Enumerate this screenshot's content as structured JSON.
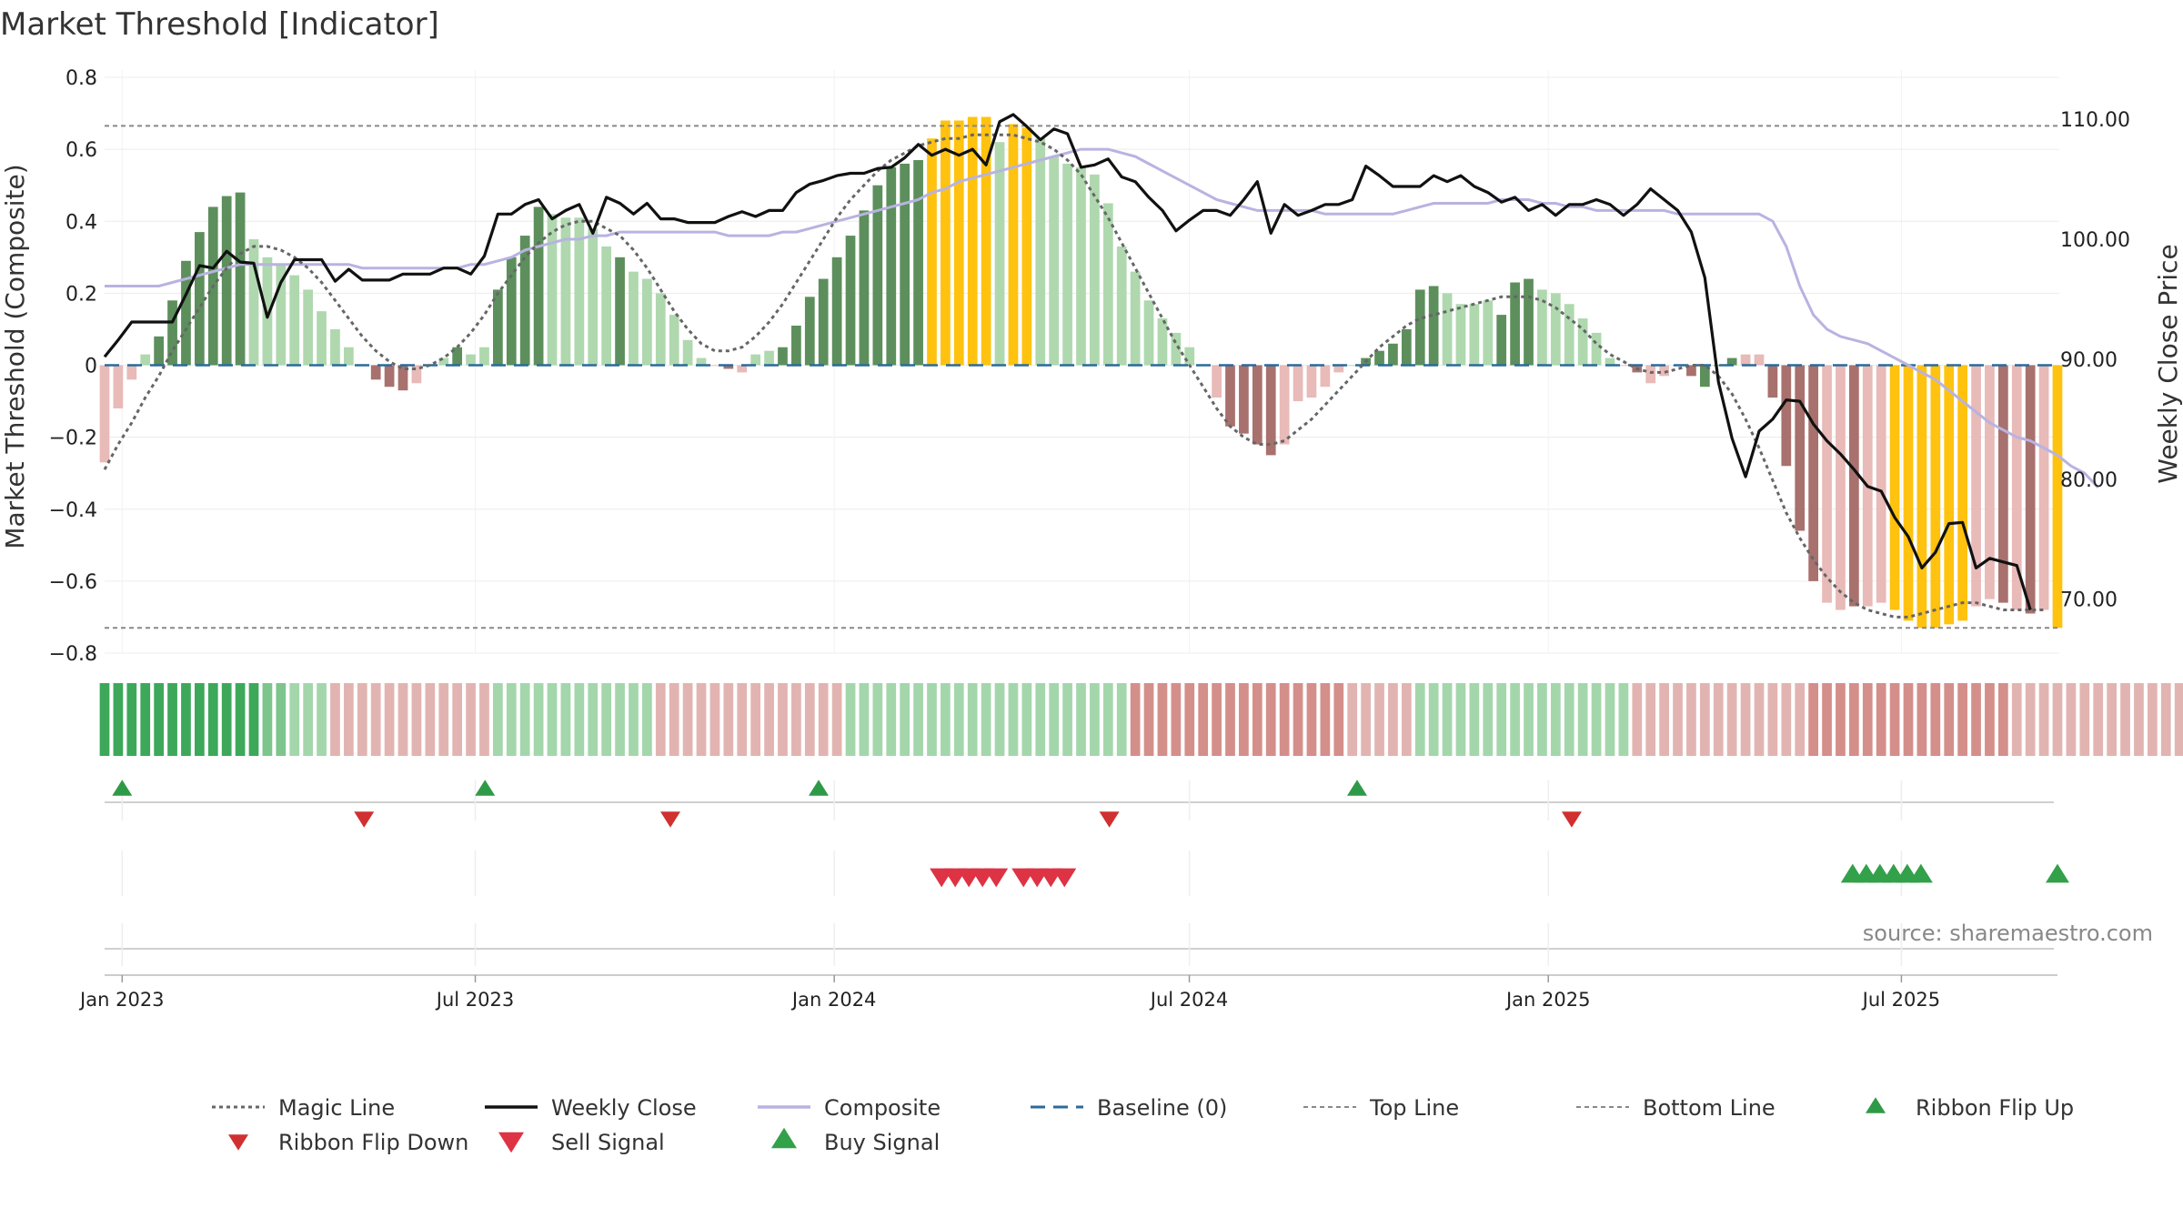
{
  "chart_data": {
    "type": "bar",
    "title": "Market Threshold [Indicator]",
    "ylabel_left": "Market Threshold (Composite)",
    "ylabel_right": "Weekly Close Price",
    "source": "source: sharemaestro.com",
    "ylim_left": [
      -0.8,
      0.8
    ],
    "ylim_right": [
      65.5,
      113.5
    ],
    "yticks_left": [
      {
        "v": 0.8,
        "label": "0.8"
      },
      {
        "v": 0.6,
        "label": "0.6"
      },
      {
        "v": 0.4,
        "label": "0.4"
      },
      {
        "v": 0.2,
        "label": "0.2"
      },
      {
        "v": 0,
        "label": "0"
      },
      {
        "v": -0.2,
        "label": "−0.2"
      },
      {
        "v": -0.4,
        "label": "−0.4"
      },
      {
        "v": -0.6,
        "label": "−0.6"
      },
      {
        "v": -0.8,
        "label": "−0.8"
      }
    ],
    "yticks_right": [
      {
        "v": 110,
        "label": "110.00"
      },
      {
        "v": 100,
        "label": "100.00"
      },
      {
        "v": 90,
        "label": "90.00"
      },
      {
        "v": 80,
        "label": "80.00"
      },
      {
        "v": 70,
        "label": "70.00"
      }
    ],
    "x_start": "2022-12-23",
    "x_end": "2025-09-19",
    "x_ticks": [
      {
        "date": "2023-01-01",
        "label": "Jan 2023"
      },
      {
        "date": "2023-07-01",
        "label": "Jul 2023"
      },
      {
        "date": "2024-01-01",
        "label": "Jan 2024"
      },
      {
        "date": "2024-07-01",
        "label": "Jul 2024"
      },
      {
        "date": "2025-01-01",
        "label": "Jan 2025"
      },
      {
        "date": "2025-07-01",
        "label": "Jul 2025"
      }
    ],
    "top_line": 0.665,
    "bottom_line": -0.73,
    "baseline": 0,
    "grid": true,
    "composite": [
      -0.27,
      -0.12,
      -0.04,
      0.03,
      0.08,
      0.18,
      0.29,
      0.37,
      0.44,
      0.47,
      0.48,
      0.35,
      0.3,
      0.28,
      0.25,
      0.21,
      0.15,
      0.1,
      0.05,
      0.0,
      -0.04,
      -0.06,
      -0.07,
      -0.05,
      0.0,
      0.02,
      0.05,
      0.03,
      0.05,
      0.21,
      0.3,
      0.36,
      0.44,
      0.42,
      0.41,
      0.41,
      0.38,
      0.33,
      0.3,
      0.26,
      0.24,
      0.2,
      0.14,
      0.07,
      0.02,
      0.0,
      -0.01,
      -0.02,
      0.03,
      0.04,
      0.05,
      0.11,
      0.19,
      0.24,
      0.3,
      0.36,
      0.43,
      0.5,
      0.55,
      0.56,
      0.57,
      0.63,
      0.68,
      0.68,
      0.69,
      0.69,
      0.62,
      0.67,
      0.66,
      0.63,
      0.58,
      0.56,
      0.55,
      0.53,
      0.45,
      0.33,
      0.26,
      0.18,
      0.13,
      0.09,
      0.05,
      0.0,
      -0.09,
      -0.17,
      -0.19,
      -0.22,
      -0.25,
      -0.22,
      -0.1,
      -0.09,
      -0.06,
      -0.02,
      0.0,
      0.02,
      0.04,
      0.06,
      0.1,
      0.21,
      0.22,
      0.2,
      0.17,
      0.17,
      0.18,
      0.14,
      0.23,
      0.24,
      0.21,
      0.2,
      0.17,
      0.13,
      0.09,
      0.02,
      0.0,
      -0.02,
      -0.05,
      -0.03,
      0.0,
      -0.03,
      -0.06,
      0.0,
      0.02,
      0.03,
      0.03,
      -0.09,
      -0.28,
      -0.46,
      -0.6,
      -0.66,
      -0.68,
      -0.67,
      -0.67,
      -0.66,
      -0.68,
      -0.71,
      -0.73,
      -0.73,
      -0.72,
      -0.71,
      -0.67,
      -0.65,
      -0.66,
      -0.68,
      -0.69,
      -0.68,
      -0.73
    ],
    "bar_class": [
      "lr",
      "lr",
      "lr",
      "lg",
      "dg",
      "dg",
      "dg",
      "dg",
      "dg",
      "dg",
      "dg",
      "lg",
      "lg",
      "lg",
      "lg",
      "lg",
      "lg",
      "lg",
      "lg",
      "lr",
      "dr",
      "dr",
      "dr",
      "lr",
      "lg",
      "lg",
      "dg",
      "lg",
      "lg",
      "dg",
      "dg",
      "dg",
      "dg",
      "lg",
      "lg",
      "lg",
      "lg",
      "lg",
      "dg",
      "lg",
      "lg",
      "lg",
      "lg",
      "lg",
      "lg",
      "lr",
      "dr",
      "lr",
      "lg",
      "lg",
      "dg",
      "dg",
      "dg",
      "dg",
      "dg",
      "dg",
      "dg",
      "dg",
      "dg",
      "dg",
      "dg",
      "y",
      "y",
      "y",
      "y",
      "y",
      "lg",
      "y",
      "y",
      "lg",
      "lg",
      "lg",
      "lg",
      "lg",
      "lg",
      "lg",
      "lg",
      "lg",
      "lg",
      "lg",
      "lg",
      "lr",
      "lr",
      "dr",
      "dr",
      "dr",
      "dr",
      "lr",
      "lr",
      "lr",
      "lr",
      "lr",
      "lg",
      "dg",
      "dg",
      "dg",
      "dg",
      "dg",
      "dg",
      "lg",
      "lg",
      "lg",
      "lg",
      "dg",
      "dg",
      "dg",
      "lg",
      "lg",
      "lg",
      "lg",
      "lg",
      "lg",
      "lr",
      "dr",
      "lr",
      "lr",
      "dr",
      "dr",
      "dg",
      "dg",
      "dg",
      "lr",
      "lr",
      "dr",
      "dr",
      "dr",
      "dr",
      "lr",
      "lr",
      "dr",
      "lr",
      "lr",
      "y",
      "y",
      "y",
      "y",
      "y",
      "y",
      "lr",
      "lr",
      "dr",
      "lr",
      "dr",
      "lr",
      "y"
    ],
    "weekly_close": [
      90.2,
      91.6,
      93.1,
      93.1,
      93.1,
      93.1,
      95.4,
      97.8,
      97.6,
      99.0,
      98.1,
      98.0,
      93.5,
      96.4,
      98.3,
      98.3,
      98.3,
      96.5,
      97.5,
      96.6,
      96.6,
      96.6,
      97.1,
      97.1,
      97.1,
      97.6,
      97.6,
      97.1,
      98.6,
      102.1,
      102.1,
      102.9,
      103.3,
      101.7,
      102.4,
      102.9,
      100.5,
      103.5,
      103.0,
      102.1,
      103.0,
      101.7,
      101.7,
      101.4,
      101.4,
      101.4,
      101.9,
      102.3,
      101.9,
      102.4,
      102.4,
      103.9,
      104.6,
      104.9,
      105.3,
      105.5,
      105.5,
      105.9,
      106.0,
      106.8,
      107.9,
      107.0,
      107.5,
      107.0,
      107.5,
      106.2,
      109.8,
      110.4,
      109.4,
      108.3,
      109.2,
      108.8,
      106.0,
      106.2,
      106.7,
      105.2,
      104.8,
      103.5,
      102.4,
      100.7,
      101.6,
      102.4,
      102.4,
      102.0,
      103.3,
      104.8,
      100.5,
      102.9,
      102.0,
      102.4,
      102.9,
      102.9,
      103.3,
      106.1,
      105.3,
      104.4,
      104.4,
      104.4,
      105.3,
      104.8,
      105.3,
      104.4,
      103.9,
      103.1,
      103.5,
      102.4,
      102.9,
      102.0,
      102.9,
      102.9,
      103.3,
      102.9,
      102.0,
      102.9,
      104.2,
      103.3,
      102.4,
      100.6,
      96.8,
      88.1,
      83.4,
      80.2,
      84.0,
      85.0,
      86.6,
      86.5,
      84.6,
      83.2,
      82.1,
      80.8,
      79.4,
      79.0,
      76.8,
      75.2,
      72.6,
      73.9,
      76.3,
      76.4,
      72.6,
      73.4,
      73.1,
      72.8,
      69.1
    ],
    "magic_line": [
      -0.29,
      -0.22,
      -0.16,
      -0.09,
      -0.03,
      0.04,
      0.1,
      0.16,
      0.22,
      0.27,
      0.31,
      0.33,
      0.33,
      0.32,
      0.3,
      0.27,
      0.23,
      0.18,
      0.13,
      0.08,
      0.04,
      0.01,
      -0.01,
      -0.01,
      0.0,
      0.02,
      0.05,
      0.09,
      0.14,
      0.2,
      0.25,
      0.3,
      0.34,
      0.37,
      0.39,
      0.4,
      0.4,
      0.38,
      0.36,
      0.32,
      0.27,
      0.21,
      0.15,
      0.1,
      0.06,
      0.04,
      0.04,
      0.05,
      0.08,
      0.12,
      0.17,
      0.23,
      0.29,
      0.35,
      0.41,
      0.46,
      0.5,
      0.54,
      0.57,
      0.59,
      0.61,
      0.62,
      0.63,
      0.63,
      0.64,
      0.64,
      0.64,
      0.64,
      0.63,
      0.62,
      0.6,
      0.57,
      0.53,
      0.47,
      0.41,
      0.34,
      0.27,
      0.2,
      0.13,
      0.06,
      0.0,
      -0.06,
      -0.12,
      -0.17,
      -0.2,
      -0.22,
      -0.22,
      -0.21,
      -0.18,
      -0.15,
      -0.11,
      -0.07,
      -0.03,
      0.01,
      0.05,
      0.08,
      0.11,
      0.13,
      0.14,
      0.15,
      0.16,
      0.17,
      0.18,
      0.19,
      0.19,
      0.19,
      0.18,
      0.16,
      0.13,
      0.1,
      0.06,
      0.03,
      0.01,
      -0.01,
      -0.02,
      -0.02,
      -0.01,
      0.0,
      0.0,
      -0.03,
      -0.08,
      -0.15,
      -0.23,
      -0.32,
      -0.41,
      -0.48,
      -0.54,
      -0.59,
      -0.63,
      -0.66,
      -0.68,
      -0.69,
      -0.7,
      -0.7,
      -0.69,
      -0.68,
      -0.67,
      -0.66,
      -0.66,
      -0.67,
      -0.68,
      -0.68,
      -0.68,
      -0.68
    ],
    "composite_line": [
      0.22,
      0.22,
      0.22,
      0.22,
      0.22,
      0.23,
      0.24,
      0.25,
      0.26,
      0.27,
      0.28,
      0.28,
      0.28,
      0.28,
      0.28,
      0.28,
      0.28,
      0.28,
      0.28,
      0.27,
      0.27,
      0.27,
      0.27,
      0.27,
      0.27,
      0.27,
      0.27,
      0.28,
      0.28,
      0.29,
      0.3,
      0.32,
      0.33,
      0.34,
      0.35,
      0.35,
      0.36,
      0.36,
      0.37,
      0.37,
      0.37,
      0.37,
      0.37,
      0.37,
      0.37,
      0.37,
      0.36,
      0.36,
      0.36,
      0.36,
      0.37,
      0.37,
      0.38,
      0.39,
      0.4,
      0.41,
      0.42,
      0.43,
      0.44,
      0.45,
      0.46,
      0.48,
      0.49,
      0.51,
      0.52,
      0.53,
      0.54,
      0.55,
      0.56,
      0.57,
      0.58,
      0.59,
      0.6,
      0.6,
      0.6,
      0.59,
      0.58,
      0.56,
      0.54,
      0.52,
      0.5,
      0.48,
      0.46,
      0.45,
      0.44,
      0.43,
      0.43,
      0.43,
      0.43,
      0.43,
      0.42,
      0.42,
      0.42,
      0.42,
      0.42,
      0.42,
      0.43,
      0.44,
      0.45,
      0.45,
      0.45,
      0.45,
      0.45,
      0.46,
      0.46,
      0.46,
      0.45,
      0.45,
      0.44,
      0.44,
      0.43,
      0.43,
      0.43,
      0.43,
      0.43,
      0.43,
      0.42,
      0.42,
      0.42,
      0.42,
      0.42,
      0.42,
      0.42,
      0.4,
      0.33,
      0.22,
      0.14,
      0.1,
      0.08,
      0.07,
      0.06,
      0.04,
      0.02,
      0.0,
      -0.02,
      -0.04,
      -0.07,
      -0.1,
      -0.13,
      -0.16,
      -0.18,
      -0.2,
      -0.21,
      -0.23,
      -0.25,
      -0.28,
      -0.3,
      -0.34
    ],
    "ribbon": [
      0,
      3,
      3,
      3,
      3,
      3,
      3,
      3,
      3,
      3,
      3,
      3,
      2,
      2,
      1,
      1,
      1,
      -1,
      -1,
      -1,
      -1,
      -1,
      -1,
      -1,
      -1,
      -1,
      -1,
      -1,
      -1,
      1,
      1,
      1,
      1,
      1,
      1,
      1,
      1,
      1,
      1,
      1,
      1,
      -1,
      -1,
      -1,
      -1,
      -1,
      -1,
      -1,
      -1,
      -1,
      -1,
      -1,
      -1,
      -1,
      -1,
      1,
      1,
      1,
      1,
      1,
      1,
      1,
      1,
      1,
      1,
      1,
      1,
      1,
      1,
      1,
      1,
      1,
      1,
      1,
      1,
      1,
      -2,
      -2,
      -2,
      -2,
      -2,
      -2,
      -2,
      -2,
      -2,
      -2,
      -2,
      -2,
      -2,
      -2,
      -2,
      -2,
      -1,
      -1,
      -1,
      -1,
      -1,
      1,
      1,
      1,
      1,
      1,
      1,
      1,
      1,
      1,
      1,
      1,
      1,
      1,
      1,
      1,
      1,
      -1,
      -1,
      -1,
      -1,
      -1,
      -1,
      -1,
      -1,
      -1,
      -1,
      -1,
      -1,
      -1,
      -2,
      -2,
      -2,
      -2,
      -2,
      -2,
      -2,
      -2,
      -2,
      -2,
      -2,
      -2,
      -2,
      -2,
      -2,
      -1,
      -1,
      -1,
      -1,
      -1,
      -1,
      -1,
      -1,
      -1,
      -1,
      -1,
      -1,
      -1,
      -1,
      -1
    ],
    "ribbon_flip_up_dates": [
      "2023-01-01",
      "2023-07-06",
      "2023-12-24",
      "2024-09-25"
    ],
    "ribbon_flip_down_dates": [
      "2023-05-05",
      "2023-10-09",
      "2024-05-21",
      "2025-01-13"
    ],
    "sell_signal_dates": [
      "2024-02-25",
      "2024-03-03",
      "2024-03-10",
      "2024-03-17",
      "2024-03-24",
      "2024-04-07",
      "2024-04-14",
      "2024-04-21",
      "2024-04-28"
    ],
    "buy_signal_dates": [
      "2025-06-06",
      "2025-06-13",
      "2025-06-20",
      "2025-06-27",
      "2025-07-04",
      "2025-07-11",
      "2025-09-19"
    ],
    "legend": [
      {
        "key": "magic",
        "label": "Magic Line"
      },
      {
        "key": "close",
        "label": "Weekly Close"
      },
      {
        "key": "composite",
        "label": "Composite"
      },
      {
        "key": "baseline",
        "label": "Baseline (0)"
      },
      {
        "key": "top",
        "label": "Top Line"
      },
      {
        "key": "bottom",
        "label": "Bottom Line"
      },
      {
        "key": "flipup",
        "label": "Ribbon Flip Up"
      },
      {
        "key": "flipdown",
        "label": "Ribbon Flip Down"
      },
      {
        "key": "sell",
        "label": "Sell Signal"
      },
      {
        "key": "buy",
        "label": "Buy Signal"
      }
    ],
    "colors": {
      "dark_green": "#5c8f5c",
      "light_green": "#afd8af",
      "dark_red": "#a8716e",
      "light_red": "#e8bab8",
      "yellow": "#ffc20e",
      "weekly_close": "#111111",
      "magic_line": "#666666",
      "composite_line": "#b8b3e0",
      "baseline": "#2b6a9a",
      "threshold_lines": "#888888",
      "flip_up": "#2e9a48",
      "flip_down": "#d03030",
      "sell": "#dd3344",
      "buy": "#33a04a"
    }
  }
}
